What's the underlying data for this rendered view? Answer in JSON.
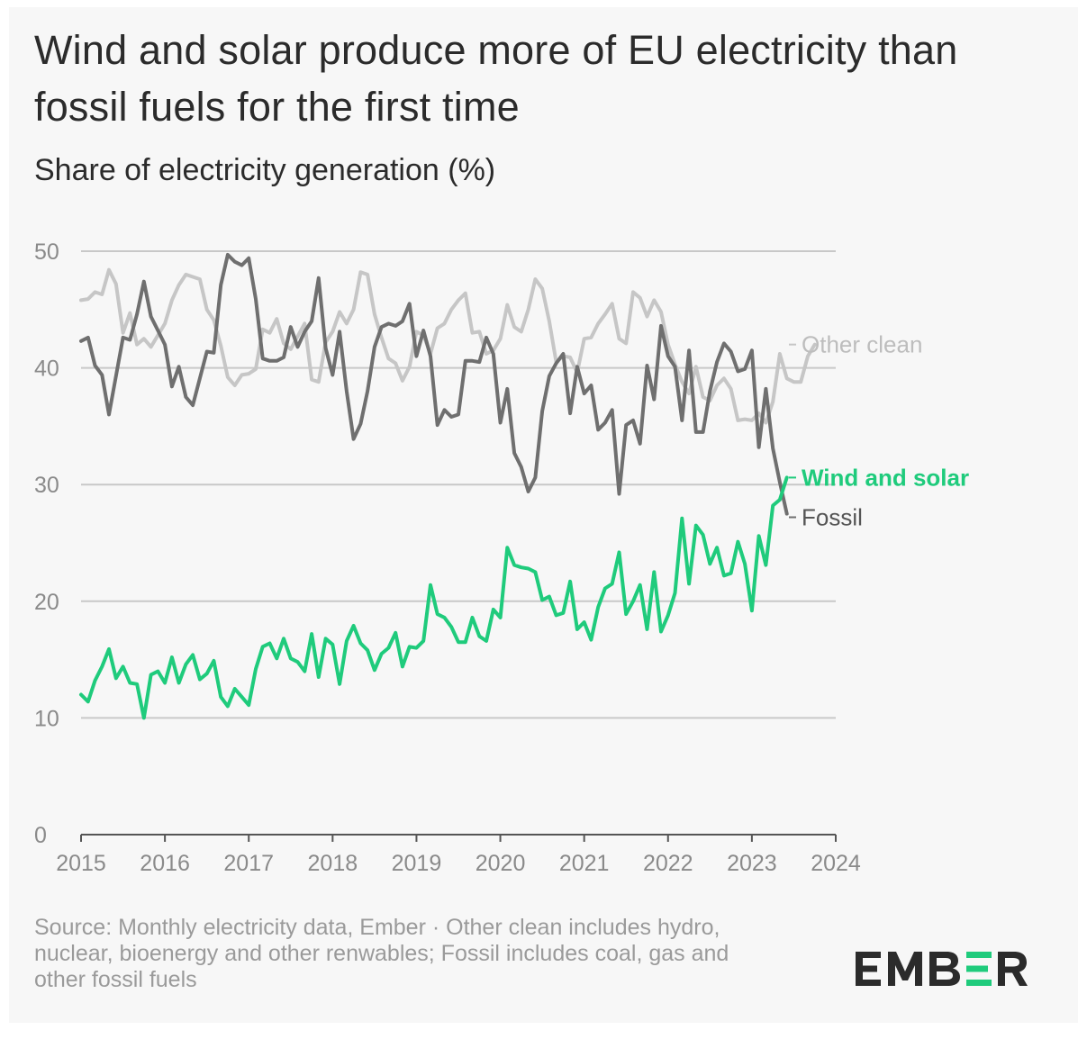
{
  "title": "Wind and solar produce more of EU electricity than fossil fuels for the first time",
  "subtitle": "Share of electricity generation (%)",
  "source": "Source: Monthly electricity data, Ember · Other clean includes hydro, nuclear, bioenergy and other renwables; Fossil includes coal, gas and other fossil fuels",
  "logo_text": "EMBER",
  "colors": {
    "wind_solar": "#1fcb7c",
    "fossil": "#6f6f6f",
    "other_clean": "#c6c6c6",
    "grid": "#c8c8c8",
    "axis_text": "#8a8a8a"
  },
  "chart_data": {
    "type": "line",
    "title": "Wind and solar produce more of EU electricity than fossil fuels for the first time",
    "ylabel": "Share of electricity generation (%)",
    "xlabel": "",
    "x_start": "2015-01",
    "x_frequency": "monthly",
    "xlim": [
      2015,
      2024
    ],
    "ylim": [
      0,
      50
    ],
    "x_ticks": [
      "2015",
      "2016",
      "2017",
      "2018",
      "2019",
      "2020",
      "2021",
      "2022",
      "2023",
      "2024"
    ],
    "y_ticks": [
      "0",
      "10",
      "20",
      "30",
      "40",
      "50"
    ],
    "grid": true,
    "legend": "inline labels at line ends (right)",
    "series": [
      {
        "name": "Other clean",
        "color": "#c6c6c6",
        "values": [
          45.8,
          45.9,
          46.5,
          46.3,
          48.4,
          47.2,
          43.0,
          44.7,
          42.0,
          42.5,
          41.8,
          42.8,
          43.8,
          45.8,
          47.1,
          48.0,
          47.8,
          47.6,
          45.0,
          44.1,
          41.9,
          39.2,
          38.5,
          39.4,
          39.5,
          39.9,
          43.3,
          43.0,
          44.2,
          42.1,
          41.6,
          42.7,
          43.8,
          39.0,
          38.8,
          42.2,
          43.1,
          44.8,
          43.8,
          45.0,
          48.2,
          48.0,
          44.6,
          42.6,
          40.8,
          40.4,
          38.9,
          40.1,
          43.1,
          42.8,
          41.2,
          43.4,
          43.8,
          45.0,
          45.8,
          46.4,
          43.0,
          43.1,
          41.2,
          41.5,
          42.5,
          45.4,
          43.5,
          43.1,
          45.0,
          47.6,
          46.8,
          44.0,
          40.5,
          41.0,
          40.9,
          39.6,
          42.5,
          42.6,
          43.8,
          44.6,
          45.5,
          42.5,
          42.1,
          46.5,
          46.0,
          44.4,
          45.8,
          44.8,
          42.0,
          40.3,
          38.8,
          37.8,
          40.1,
          37.5,
          37.2,
          38.5,
          39.1,
          38.2,
          35.5,
          35.6,
          35.5,
          36.1,
          35.3,
          37.1,
          41.2,
          39.1,
          38.8,
          38.8,
          41.0,
          42.0
        ]
      },
      {
        "name": "Fossil",
        "color": "#6f6f6f",
        "values": [
          42.3,
          42.6,
          40.2,
          39.4,
          36.0,
          39.3,
          42.6,
          42.4,
          44.6,
          47.4,
          44.4,
          43.2,
          42.0,
          38.4,
          40.1,
          37.5,
          36.8,
          39.1,
          41.4,
          41.3,
          47.1,
          49.7,
          49.1,
          48.8,
          49.4,
          45.9,
          40.8,
          40.6,
          40.6,
          40.9,
          43.5,
          41.8,
          43.1,
          44.0,
          47.7,
          41.7,
          39.4,
          43.1,
          38.0,
          33.9,
          35.2,
          38.0,
          41.8,
          43.5,
          43.8,
          43.6,
          44.0,
          45.5,
          41.0,
          43.2,
          41.0,
          35.1,
          36.4,
          35.8,
          36.0,
          40.6,
          40.6,
          40.5,
          42.6,
          41.2,
          35.3,
          38.2,
          32.7,
          31.5,
          29.4,
          30.6,
          36.3,
          39.3,
          40.4,
          41.2,
          36.1,
          40.1,
          37.8,
          38.5,
          34.7,
          35.3,
          36.4,
          29.2,
          35.1,
          35.5,
          33.5,
          40.2,
          37.3,
          43.6,
          41.0,
          40.1,
          35.5,
          41.5,
          34.5,
          34.5,
          38.0,
          40.5,
          42.1,
          41.4,
          39.7,
          39.9,
          41.5,
          33.2,
          38.2,
          33.1,
          30.2,
          27.5
        ]
      },
      {
        "name": "Wind and solar",
        "color": "#1fcb7c",
        "values": [
          12.0,
          11.4,
          13.2,
          14.4,
          15.9,
          13.4,
          14.4,
          13.0,
          12.9,
          10.0,
          13.7,
          14.0,
          13.0,
          15.2,
          13.0,
          14.6,
          15.4,
          13.3,
          13.8,
          14.9,
          11.8,
          11.0,
          12.5,
          11.8,
          11.1,
          14.2,
          16.1,
          16.4,
          15.1,
          16.8,
          15.1,
          14.8,
          14.0,
          17.2,
          13.5,
          16.8,
          16.3,
          12.9,
          16.6,
          17.9,
          16.4,
          15.8,
          14.1,
          15.5,
          16.0,
          17.3,
          14.4,
          16.1,
          16.0,
          16.6,
          21.4,
          18.9,
          18.6,
          17.8,
          16.5,
          16.5,
          18.6,
          17.0,
          16.6,
          19.3,
          18.6,
          24.6,
          23.1,
          22.9,
          22.8,
          22.5,
          20.1,
          20.4,
          18.8,
          19.0,
          21.7,
          17.6,
          18.2,
          16.7,
          19.5,
          21.1,
          21.5,
          24.2,
          18.9,
          20.0,
          21.4,
          17.6,
          22.5,
          17.4,
          18.8,
          20.7,
          27.1,
          21.5,
          26.5,
          25.7,
          23.2,
          24.6,
          22.2,
          22.4,
          25.1,
          23.2,
          19.2,
          25.6,
          23.1,
          28.2,
          28.7,
          30.6
        ]
      }
    ]
  }
}
